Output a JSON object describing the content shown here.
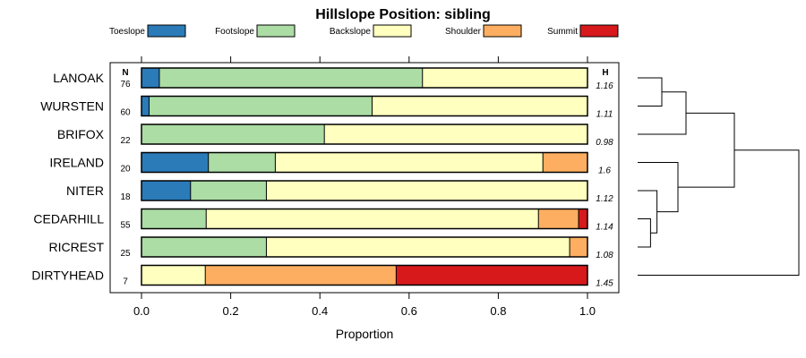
{
  "chart_data": {
    "type": "bar",
    "stacked": true,
    "orientation": "horizontal",
    "title": "Hillslope Position: sibling",
    "xlabel": "Proportion",
    "xlim": [
      0,
      1
    ],
    "xticks": [
      "0.0",
      "0.2",
      "0.4",
      "0.6",
      "0.8",
      "1.0"
    ],
    "legend_position": "top",
    "n_header": "N",
    "h_header": "H",
    "series": [
      {
        "name": "Toeslope",
        "color": "#2b7bb9"
      },
      {
        "name": "Footslope",
        "color": "#abdda4"
      },
      {
        "name": "Backslope",
        "color": "#ffffbf"
      },
      {
        "name": "Shoulder",
        "color": "#fdae61"
      },
      {
        "name": "Summit",
        "color": "#d7191c"
      }
    ],
    "rows": [
      {
        "label": "LANOAK",
        "n": "76",
        "h": "1.16",
        "values": [
          0.04,
          0.59,
          0.37,
          0,
          0
        ]
      },
      {
        "label": "WURSTEN",
        "n": "60",
        "h": "1.11",
        "values": [
          0.017,
          0.5,
          0.483,
          0,
          0
        ]
      },
      {
        "label": "BRIFOX",
        "n": "22",
        "h": "0.98",
        "values": [
          0,
          0.41,
          0.59,
          0,
          0
        ]
      },
      {
        "label": "IRELAND",
        "n": "20",
        "h": "1.6",
        "values": [
          0.15,
          0.15,
          0.6,
          0.1,
          0
        ]
      },
      {
        "label": "NITER",
        "n": "18",
        "h": "1.12",
        "values": [
          0.11,
          0.17,
          0.72,
          0,
          0
        ]
      },
      {
        "label": "CEDARHILL",
        "n": "55",
        "h": "1.14",
        "values": [
          0,
          0.145,
          0.745,
          0.09,
          0.02
        ]
      },
      {
        "label": "RICREST",
        "n": "25",
        "h": "1.08",
        "values": [
          0,
          0.28,
          0.68,
          0.04,
          0
        ]
      },
      {
        "label": "DIRTYHEAD",
        "n": "7",
        "h": "1.45",
        "values": [
          0,
          0,
          0.143,
          0.428,
          0.429
        ]
      }
    ],
    "dendrogram": {
      "merges": [
        {
          "left": "CEDARHILL",
          "right": "RICREST",
          "height": 0.08
        },
        {
          "left": "NITER",
          "right": "m0",
          "height": 0.12
        },
        {
          "left": "LANOAK",
          "right": "WURSTEN",
          "height": 0.15
        },
        {
          "left": "IRELAND",
          "right": "m1",
          "height": 0.25
        },
        {
          "left": "m2",
          "right": "BRIFOX",
          "height": 0.3
        },
        {
          "left": "m4",
          "right": "m3",
          "height": 0.6
        },
        {
          "left": "m5",
          "right": "DIRTYHEAD",
          "height": 1.0
        }
      ]
    }
  }
}
